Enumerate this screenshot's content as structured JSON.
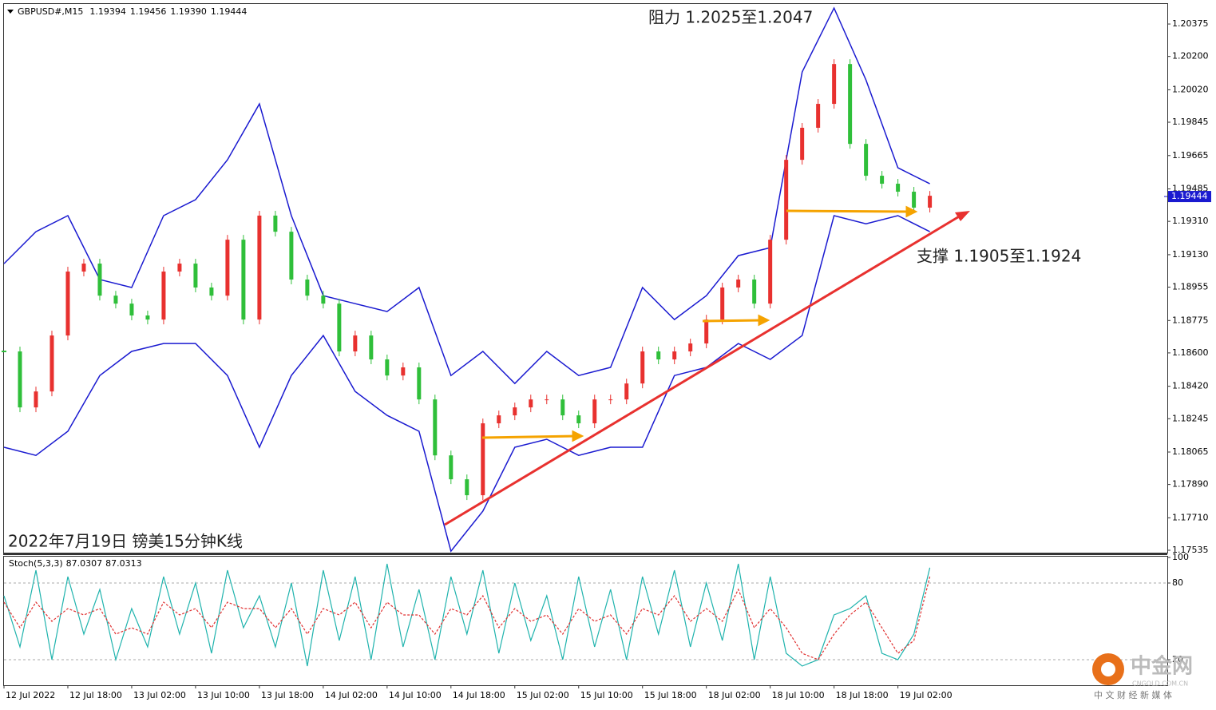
{
  "chart_data": [
    {
      "type": "candlestick",
      "title": "GBPUSD#,M15",
      "ohlc": [
        {
          "value": 1.19394,
          "label": "1.19394"
        },
        {
          "value": 1.19456,
          "label": "1.19456"
        },
        {
          "value": 1.1939,
          "label": "1.19390"
        },
        {
          "value": 1.19444,
          "label": "1.19444"
        }
      ],
      "annotations": [
        "阻力 1.2025至1.2047",
        "支撑 1.1905至1.1924",
        "2022年7月19日 镑美15分钟K线"
      ],
      "x": [
        0,
        8,
        16,
        24,
        32,
        40,
        48,
        56,
        64,
        72,
        80,
        88,
        96,
        104,
        112,
        120,
        128,
        136,
        144,
        152,
        160,
        168,
        176,
        184,
        192,
        200,
        208,
        216,
        224,
        232,
        240,
        248,
        256,
        264,
        272,
        280,
        288,
        296,
        304,
        312,
        320,
        328,
        336,
        344,
        352,
        360,
        368,
        376,
        384,
        392,
        400,
        408,
        416,
        424,
        432,
        440,
        448,
        456,
        464
      ],
      "close": [
        1.18608,
        1.18306,
        1.18392,
        1.18694,
        1.19039,
        1.19082,
        1.18909,
        1.18866,
        1.18802,
        1.1878,
        1.19039,
        1.19082,
        1.18953,
        1.18909,
        1.19211,
        1.1878,
        1.19341,
        1.19254,
        1.18996,
        1.18909,
        1.18866,
        1.18608,
        1.18694,
        1.18565,
        1.18478,
        1.18522,
        1.18349,
        1.18047,
        1.17918,
        1.17832,
        1.1822,
        1.18263,
        1.18306,
        1.18349,
        1.18349,
        1.18263,
        1.1822,
        1.18349,
        1.18349,
        1.18435,
        1.18608,
        1.18565,
        1.18608,
        1.18651,
        1.1878,
        1.18953,
        1.18996,
        1.18866,
        1.19211,
        1.19642,
        1.19815,
        1.19944,
        1.20159,
        1.19728,
        1.19556,
        1.19513,
        1.1947,
        1.19384,
        1.19448
      ],
      "up_color": "#e8312f",
      "down_color": "#2fbf3a",
      "band_color": "#1a1ad0",
      "band_x": [
        0,
        16,
        32,
        48,
        64,
        80,
        96,
        112,
        128,
        144,
        160,
        176,
        192,
        208,
        224,
        240,
        256,
        272,
        288,
        304,
        320,
        336,
        352,
        368,
        384,
        400,
        416,
        432,
        448,
        464
      ],
      "upper_band": [
        1.19082,
        1.19254,
        1.19341,
        1.18996,
        1.18953,
        1.19341,
        1.19427,
        1.19642,
        1.19944,
        1.19341,
        1.18909,
        1.18866,
        1.18823,
        1.18953,
        1.18478,
        1.18608,
        1.18435,
        1.18608,
        1.18478,
        1.18522,
        1.18953,
        1.1878,
        1.18909,
        1.19125,
        1.19168,
        1.20116,
        1.20461,
        1.20073,
        1.19599,
        1.19513
      ],
      "lower_band": [
        1.18091,
        1.18047,
        1.18177,
        1.18478,
        1.18608,
        1.18651,
        1.18651,
        1.18478,
        1.18091,
        1.18478,
        1.18694,
        1.18392,
        1.18263,
        1.18177,
        1.1753,
        1.17746,
        1.18091,
        1.18134,
        1.18047,
        1.18091,
        1.18091,
        1.18478,
        1.18522,
        1.18651,
        1.18565,
        1.18694,
        1.19341,
        1.19297,
        1.19341,
        1.19254
      ],
      "last_price": 1.19444,
      "last_price_color": "#1a1ad0",
      "xlim": [
        0,
        583
      ],
      "ylim": [
        1.17522,
        1.20483
      ],
      "yticks": [
        {
          "value": 1.20375,
          "label": "1.20375"
        },
        {
          "value": 1.202,
          "label": "1.20200"
        },
        {
          "value": 1.2002,
          "label": "1.20020"
        },
        {
          "value": 1.19845,
          "label": "1.19845"
        },
        {
          "value": 1.19665,
          "label": "1.19665"
        },
        {
          "value": 1.19485,
          "label": "1.19485"
        },
        {
          "value": 1.1931,
          "label": "1.19310"
        },
        {
          "value": 1.1913,
          "label": "1.19130"
        },
        {
          "value": 1.18955,
          "label": "1.18955"
        },
        {
          "value": 1.18775,
          "label": "1.18775"
        },
        {
          "value": 1.186,
          "label": "1.18600"
        },
        {
          "value": 1.1842,
          "label": "1.18420"
        },
        {
          "value": 1.18245,
          "label": "1.18245"
        },
        {
          "value": 1.18065,
          "label": "1.18065"
        },
        {
          "value": 1.1789,
          "label": "1.17890"
        },
        {
          "value": 1.1771,
          "label": "1.17710"
        },
        {
          "value": 1.17535,
          "label": "1.17535"
        }
      ]
    },
    {
      "type": "stochastic",
      "title": "Stoch(5,3,3)",
      "readings": [
        87.0307,
        87.0313
      ],
      "x": [
        0,
        8,
        16,
        24,
        32,
        40,
        48,
        56,
        64,
        72,
        80,
        88,
        96,
        104,
        112,
        120,
        128,
        136,
        144,
        152,
        160,
        168,
        176,
        184,
        192,
        200,
        208,
        216,
        224,
        232,
        240,
        248,
        256,
        264,
        272,
        280,
        288,
        296,
        304,
        312,
        320,
        328,
        336,
        344,
        352,
        360,
        368,
        376,
        384,
        392,
        400,
        408,
        416,
        424,
        432,
        440,
        448,
        456,
        464
      ],
      "series": [
        {
          "color": "#1fb3ad",
          "values": [
            70,
            30,
            90,
            20,
            85,
            40,
            75,
            20,
            60,
            30,
            85,
            40,
            80,
            25,
            90,
            45,
            70,
            30,
            80,
            15,
            90,
            35,
            85,
            20,
            95,
            30,
            75,
            20,
            85,
            40,
            90,
            25,
            80,
            35,
            70,
            20,
            85,
            30,
            75,
            20,
            85,
            40,
            90,
            30,
            80,
            35,
            95,
            20,
            85,
            25,
            15,
            20,
            55,
            60,
            70,
            25,
            20,
            40,
            92
          ]
        },
        {
          "color": "#e03030",
          "dashed": true,
          "values": [
            65,
            45,
            65,
            50,
            60,
            55,
            60,
            40,
            45,
            40,
            65,
            55,
            60,
            45,
            65,
            60,
            60,
            45,
            60,
            40,
            60,
            55,
            65,
            45,
            65,
            55,
            55,
            40,
            60,
            55,
            70,
            45,
            60,
            50,
            55,
            40,
            60,
            50,
            55,
            40,
            60,
            55,
            70,
            50,
            60,
            50,
            75,
            45,
            60,
            45,
            25,
            20,
            40,
            55,
            65,
            45,
            25,
            35,
            85
          ]
        }
      ],
      "levels": [
        80,
        20
      ],
      "xlim": [
        0,
        583
      ],
      "ylim": [
        0,
        100
      ],
      "yticks": [
        100,
        80,
        20
      ],
      "xticks": [
        {
          "value": 0,
          "label": "12 Jul 2022"
        },
        {
          "value": 32,
          "label": "12 Jul 18:00"
        },
        {
          "value": 64,
          "label": "13 Jul 02:00"
        },
        {
          "value": 96,
          "label": "13 Jul 10:00"
        },
        {
          "value": 128,
          "label": "13 Jul 18:00"
        },
        {
          "value": 160,
          "label": "14 Jul 02:00"
        },
        {
          "value": 192,
          "label": "14 Jul 10:00"
        },
        {
          "value": 224,
          "label": "14 Jul 18:00"
        },
        {
          "value": 256,
          "label": "15 Jul 02:00"
        },
        {
          "value": 288,
          "label": "15 Jul 10:00"
        },
        {
          "value": 320,
          "label": "15 Jul 18:00"
        },
        {
          "value": 352,
          "label": "18 Jul 02:00"
        },
        {
          "value": 384,
          "label": "18 Jul 10:00"
        },
        {
          "value": 416,
          "label": "18 Jul 18:00"
        },
        {
          "value": 448,
          "label": "19 Jul 02:00"
        }
      ]
    }
  ],
  "watermark": {
    "brand": "中金网",
    "site": "CNGOLD.COM.CN",
    "slogan": "中 文 财 经 新 媒 体"
  }
}
